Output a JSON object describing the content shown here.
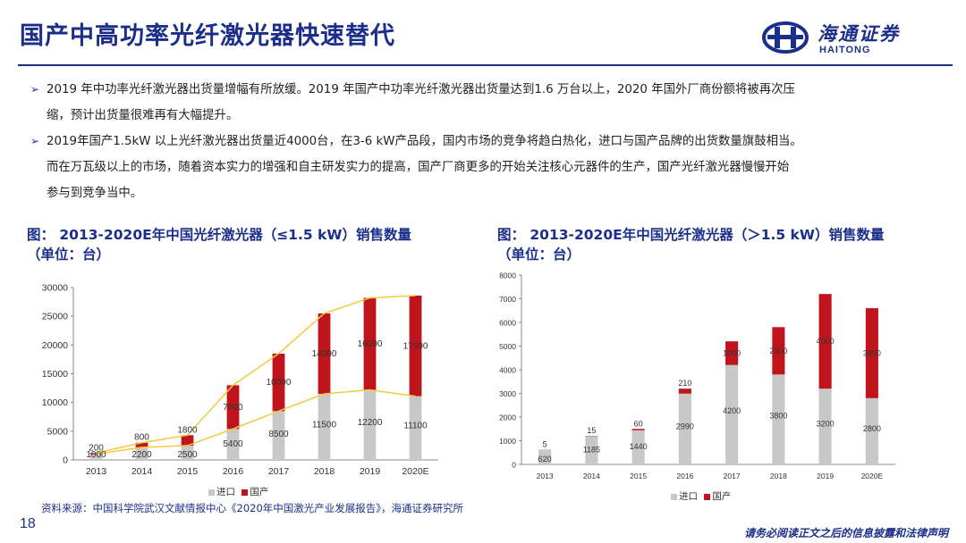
{
  "header": {
    "title": "国产中高功率光纤激光器快速替代",
    "logo_cn": "海通证券",
    "logo_en": "HAITONG"
  },
  "bullets": [
    {
      "line1": "2019 年中功率光纤激光器出货量增幅有所放缓。2019 年国产中功率光纤激光器出货量达到1.6 万台以上，2020 年国外厂商份额将被再次压",
      "line2": "缩，预计出货量很难再有大幅提升。"
    },
    {
      "line1": "2019年国产1.5kW 以上光纤激光器出货量近4000台，在3-6 kW产品段，国内市场的竞争将趋白热化，进口与国产品牌的出货数量旗鼓相当。",
      "line2": "而在万瓦级以上的市场，随着资本实力的增强和自主研发实力的提高，国产厂商更多的开始关注核心元器件的生产，国产光纤激光器慢慢开始",
      "line3": "参与到竞争当中。"
    }
  ],
  "chart_titles": {
    "left_line1": "图： 2013-2020E年中国光纤激光器（≤1.5 kW）销售数量",
    "left_line2": "（单位：台）",
    "right_line1": "图： 2013-2020E年中国光纤激光器（＞1.5 kW）销售数量",
    "right_line2": "（单位：台）"
  },
  "legend": {
    "import_label": "进口",
    "domestic_label": "国产"
  },
  "colors": {
    "import": "#c8c8c8",
    "domestic": "#c0141c",
    "line": "#f5c842",
    "brand": "#1b2f8a"
  },
  "chart_data": [
    {
      "type": "bar",
      "stacked": true,
      "categories": [
        "2013",
        "2014",
        "2015",
        "2016",
        "2017",
        "2018",
        "2019",
        "2020E"
      ],
      "series": [
        {
          "name": "进口",
          "values": [
            1000,
            2200,
            2500,
            5400,
            8500,
            11500,
            12200,
            11100
          ]
        },
        {
          "name": "国产",
          "values": [
            200,
            800,
            1800,
            7600,
            10000,
            14000,
            16000,
            17500
          ]
        }
      ],
      "ylim": [
        0,
        30000
      ],
      "yticks": [
        0,
        5000,
        10000,
        15000,
        20000,
        25000,
        30000
      ],
      "legend_position": "bottom"
    },
    {
      "type": "bar",
      "stacked": true,
      "categories": [
        "2013",
        "2014",
        "2015",
        "2016",
        "2017",
        "2018",
        "2019",
        "2020E"
      ],
      "series": [
        {
          "name": "进口",
          "values": [
            620,
            1185,
            1440,
            2990,
            4200,
            3800,
            3200,
            2800
          ]
        },
        {
          "name": "国产",
          "values": [
            5,
            15,
            60,
            210,
            1000,
            2000,
            4000,
            3800
          ]
        }
      ],
      "ylim": [
        0,
        8000
      ],
      "yticks": [
        0,
        1000,
        2000,
        3000,
        4000,
        5000,
        6000,
        7000,
        8000
      ],
      "legend_position": "bottom"
    }
  ],
  "footer": {
    "source": "资料来源：中国科学院武汉文献情报中心《2020年中国激光产业发展报告》，海通证券研究所",
    "page_number": "18",
    "disclaimer": "请务必阅读正文之后的信息披露和法律声明"
  }
}
